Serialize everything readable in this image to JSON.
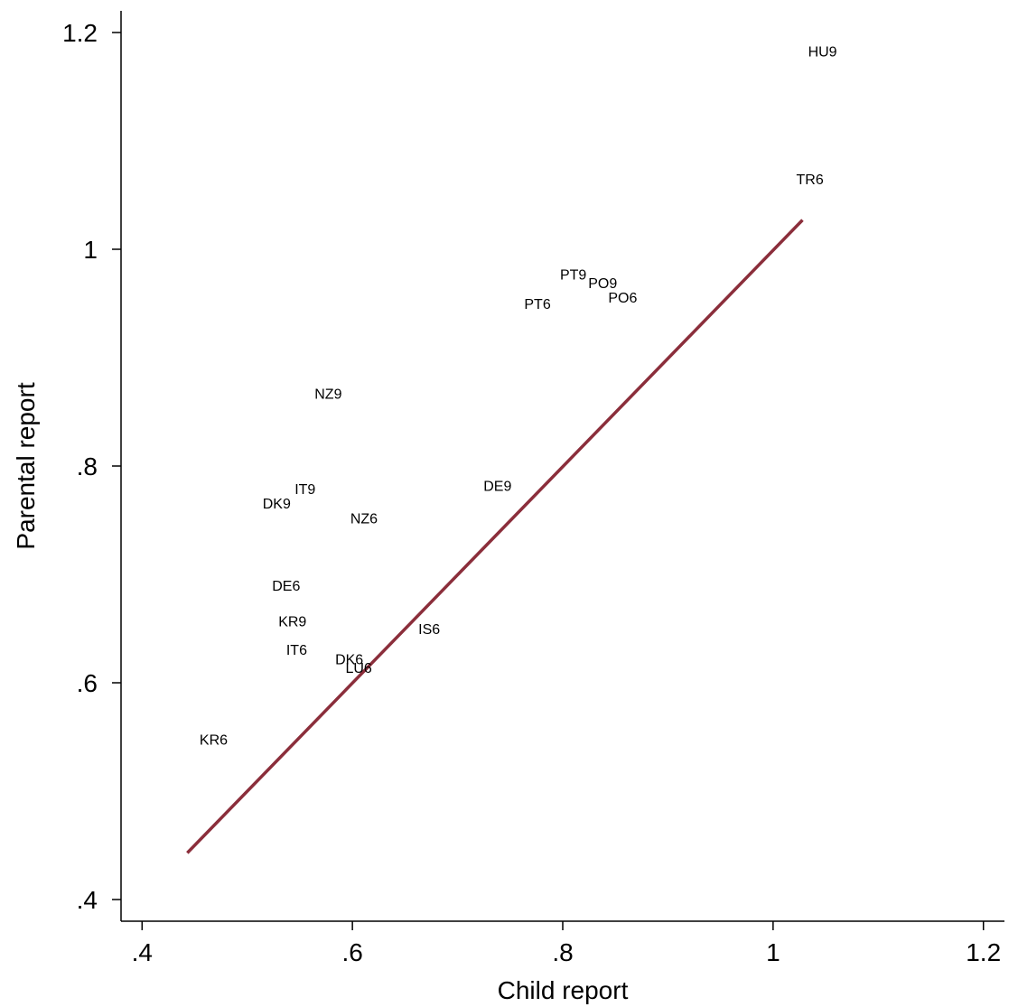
{
  "chart_data": {
    "type": "scatter",
    "title": "",
    "xlabel": "Child report",
    "ylabel": "Parental report",
    "xlim": [
      0.38,
      1.22
    ],
    "ylim": [
      0.38,
      1.22
    ],
    "x_ticks": [
      {
        "value": 0.4,
        "label": ".4"
      },
      {
        "value": 0.6,
        "label": ".6"
      },
      {
        "value": 0.8,
        "label": ".8"
      },
      {
        "value": 1.0,
        "label": "1"
      },
      {
        "value": 1.2,
        "label": "1.2"
      }
    ],
    "y_ticks": [
      {
        "value": 0.4,
        "label": ".4"
      },
      {
        "value": 0.6,
        "label": ".6"
      },
      {
        "value": 0.8,
        "label": ".8"
      },
      {
        "value": 1.0,
        "label": "1"
      },
      {
        "value": 1.2,
        "label": "1.2"
      }
    ],
    "grid": false,
    "legend": "none",
    "marker": "label-only",
    "points": [
      {
        "label": "HU9",
        "x": 1.047,
        "y": 1.183
      },
      {
        "label": "TR6",
        "x": 1.035,
        "y": 1.065
      },
      {
        "label": "PT9",
        "x": 0.81,
        "y": 0.977
      },
      {
        "label": "PO9",
        "x": 0.838,
        "y": 0.969
      },
      {
        "label": "PO6",
        "x": 0.857,
        "y": 0.956
      },
      {
        "label": "PT6",
        "x": 0.776,
        "y": 0.95
      },
      {
        "label": "NZ9",
        "x": 0.577,
        "y": 0.867
      },
      {
        "label": "DE9",
        "x": 0.738,
        "y": 0.782
      },
      {
        "label": "IT9",
        "x": 0.555,
        "y": 0.779
      },
      {
        "label": "DK9",
        "x": 0.528,
        "y": 0.766
      },
      {
        "label": "NZ6",
        "x": 0.611,
        "y": 0.752
      },
      {
        "label": "DE6",
        "x": 0.537,
        "y": 0.69
      },
      {
        "label": "KR9",
        "x": 0.543,
        "y": 0.657
      },
      {
        "label": "IS6",
        "x": 0.673,
        "y": 0.65
      },
      {
        "label": "IT6",
        "x": 0.547,
        "y": 0.631
      },
      {
        "label": "DK6",
        "x": 0.597,
        "y": 0.622
      },
      {
        "label": "LU6",
        "x": 0.606,
        "y": 0.614
      },
      {
        "label": "KR6",
        "x": 0.468,
        "y": 0.548
      }
    ],
    "fit_line": {
      "x1": 0.443,
      "y1": 0.443,
      "x2": 1.028,
      "y2": 1.027,
      "color": "#8b2e3b"
    }
  }
}
